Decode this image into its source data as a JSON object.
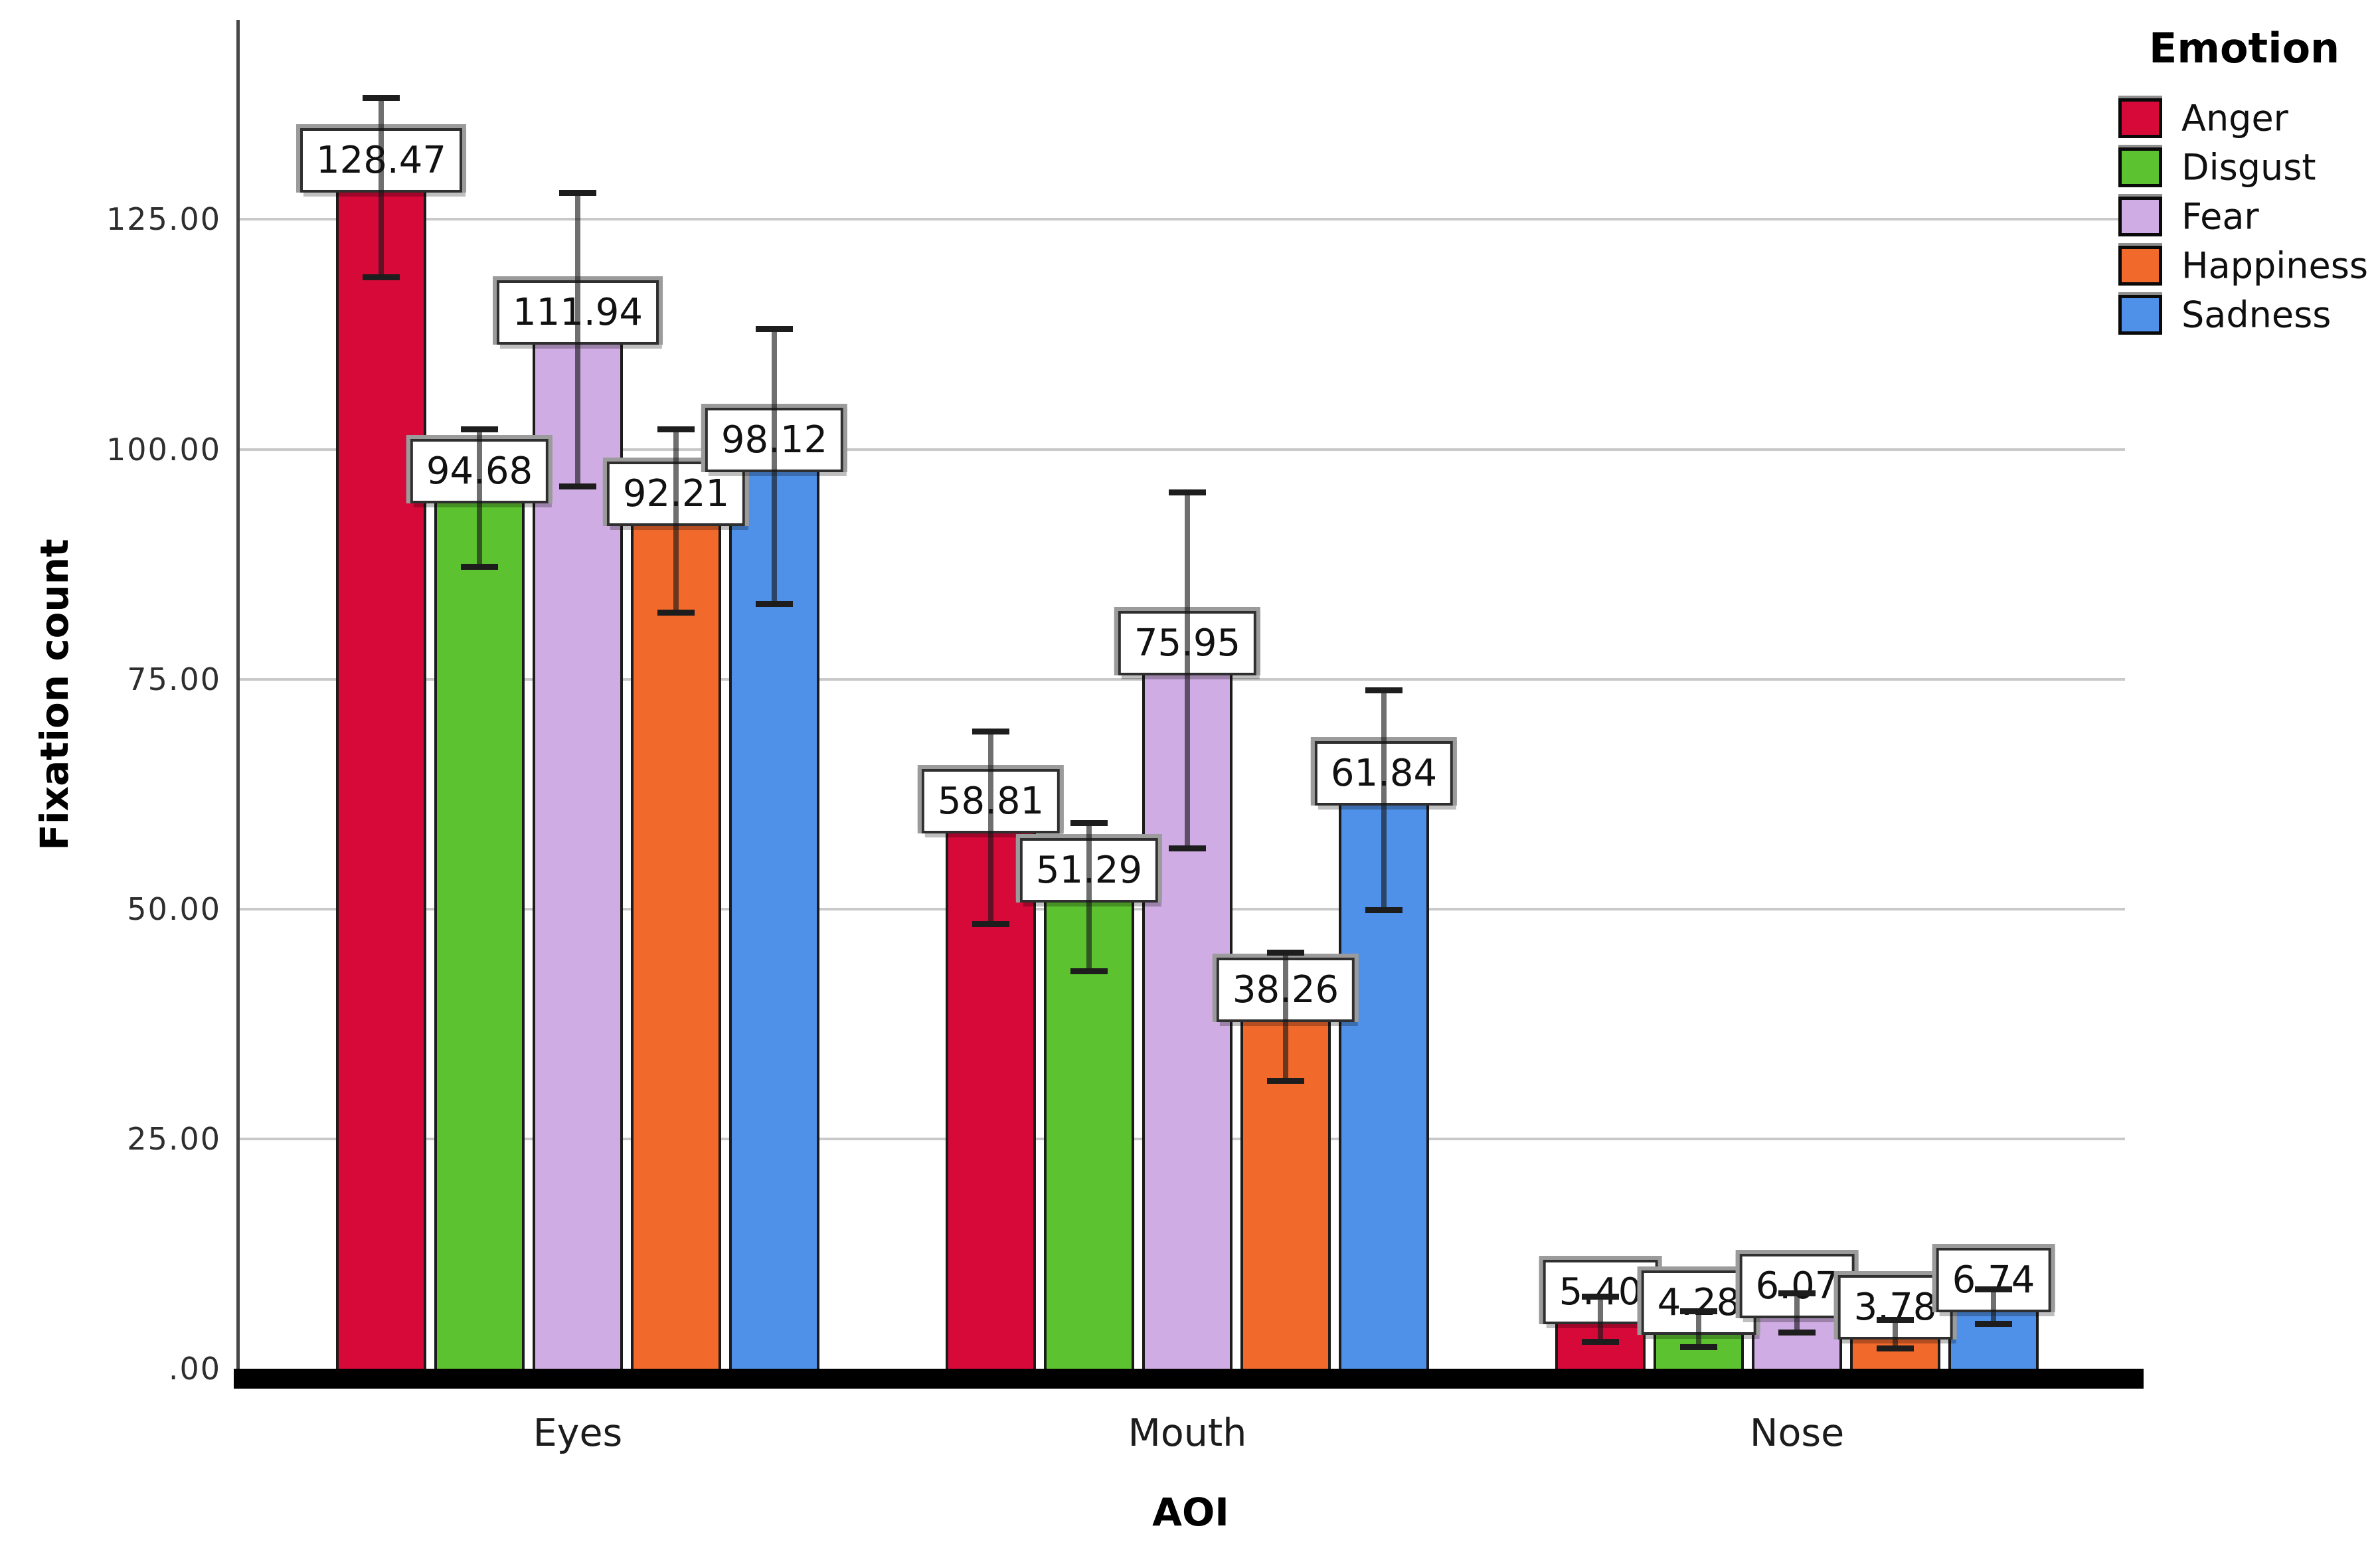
{
  "chart_data": {
    "type": "bar",
    "title": "",
    "xlabel": "AOI",
    "ylabel": "Fixation count",
    "legend_title": "Emotion",
    "legend_position": "right",
    "grid": true,
    "categories": [
      "Eyes",
      "Mouth",
      "Nose"
    ],
    "series": [
      {
        "name": "Anger",
        "color": "#D70939",
        "values": [
          128.47,
          58.81,
          5.4
        ],
        "errors": [
          9.8,
          10.5,
          2.5
        ],
        "labels": [
          "128.47",
          "58.81",
          "5.40"
        ]
      },
      {
        "name": "Disgust",
        "color": "#5CC230",
        "values": [
          94.68,
          51.29,
          4.28
        ],
        "errors": [
          7.5,
          8.1,
          2.0
        ],
        "labels": [
          "94.68",
          "51.29",
          "4.28"
        ]
      },
      {
        "name": "Fear",
        "color": "#D0ACE4",
        "values": [
          111.94,
          75.95,
          6.07
        ],
        "errors": [
          16.0,
          19.4,
          2.2
        ],
        "labels": [
          "111.94",
          "75.95",
          "6.07"
        ]
      },
      {
        "name": "Happiness",
        "color": "#F1692B",
        "values": [
          92.21,
          38.26,
          3.78
        ],
        "errors": [
          10.0,
          7.0,
          1.6
        ],
        "labels": [
          "92.21",
          "38.26",
          "3.78"
        ]
      },
      {
        "name": "Sadness",
        "color": "#4F90E8",
        "values": [
          98.12,
          61.84,
          6.74
        ],
        "errors": [
          15.0,
          12.0,
          1.9
        ],
        "labels": [
          "98.12",
          "61.84",
          "6.74"
        ]
      }
    ],
    "y_ticks": [
      {
        "value": 125,
        "label": "125.00"
      },
      {
        "value": 100,
        "label": "100.00"
      },
      {
        "value": 75,
        "label": "75.00"
      },
      {
        "value": 50,
        "label": "50.00"
      },
      {
        "value": 25,
        "label": "25.00"
      },
      {
        "value": 0,
        "label": ".00"
      }
    ],
    "ylim": [
      0,
      146.7
    ],
    "colors": {
      "grid": "#c9c9c9",
      "bar_outline": "#1b1b1b",
      "axis_line": "#474747",
      "bottom_axis": "#000000"
    }
  }
}
